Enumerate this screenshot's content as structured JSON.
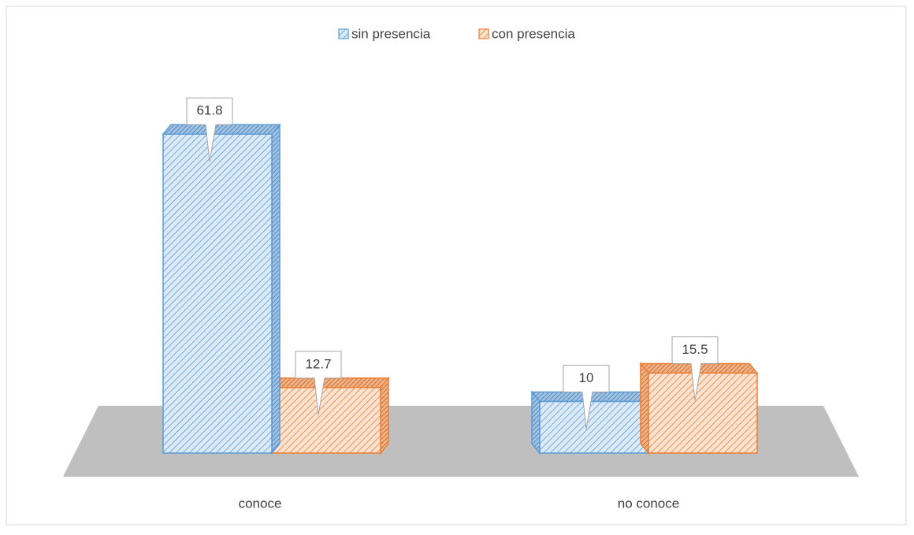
{
  "chart_data": {
    "type": "bar3d",
    "categories": [
      "conoce",
      "no conoce"
    ],
    "series": [
      {
        "name": "sin presencia",
        "color": "#5b9bd5",
        "values": [
          61.8,
          10
        ]
      },
      {
        "name": "con presencia",
        "color": "#ed7d31",
        "values": [
          12.7,
          15.5
        ]
      }
    ],
    "legend": "top"
  }
}
